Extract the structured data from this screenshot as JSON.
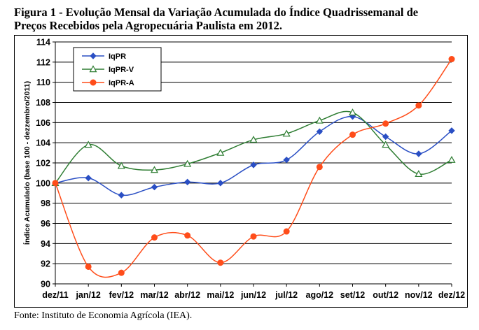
{
  "title_line1": "Figura 1 - Evolução Mensal da Variação Acumulada do Índice Quadrissemanal de",
  "title_line2": "Preços Recebidos pela Agropecuária Paulista em 2012.",
  "source": "Fonte: Instituto de Economia Agrícola (IEA).",
  "chart_data": {
    "type": "line",
    "ylabel": "Índice Acumulado (base 100 - dezzembro/2011)",
    "xlabel": "",
    "ylim": [
      90,
      114
    ],
    "yticks": [
      90,
      92,
      94,
      96,
      98,
      100,
      102,
      104,
      106,
      108,
      110,
      112,
      114
    ],
    "categories": [
      "dez/11",
      "jan/12",
      "fev/12",
      "mar/12",
      "abr/12",
      "mai/12",
      "jun/12",
      "jul/12",
      "ago/12",
      "set/12",
      "out/12",
      "nov/12",
      "dez/12"
    ],
    "grid": true,
    "legend_position": "top-left",
    "series": [
      {
        "name": "IqPR",
        "color": "#2a4fc4",
        "marker": "diamond",
        "values": [
          100.0,
          100.5,
          98.8,
          99.6,
          100.1,
          100.0,
          101.8,
          102.3,
          105.1,
          106.6,
          104.6,
          102.9,
          105.2
        ]
      },
      {
        "name": "IqPR-V",
        "color": "#2e7d32",
        "marker": "triangle",
        "values": [
          100.0,
          103.8,
          101.7,
          101.3,
          101.9,
          103.0,
          104.3,
          104.9,
          106.2,
          107.0,
          103.8,
          100.9,
          102.3
        ]
      },
      {
        "name": "IqPR-A",
        "color": "#ff4d1a",
        "marker": "circle",
        "values": [
          100.0,
          91.7,
          91.1,
          94.6,
          94.8,
          92.1,
          94.7,
          95.2,
          101.6,
          104.8,
          105.9,
          107.7,
          112.3
        ]
      }
    ]
  }
}
